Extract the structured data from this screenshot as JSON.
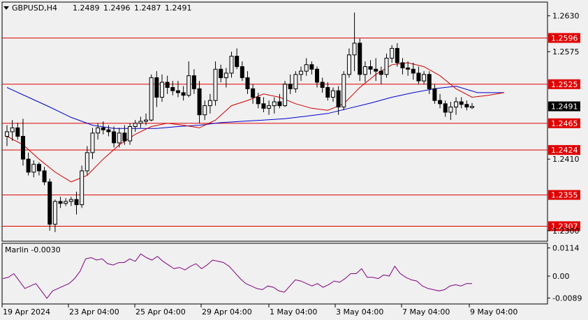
{
  "chart_data": [
    {
      "type": "candlestick",
      "header": {
        "symbol_tf": "GBPUSD,H4",
        "ohlc": [
          "1.2489",
          "1.2496",
          "1.2487",
          "1.2491"
        ]
      },
      "ylim": [
        1.2285,
        1.265
      ],
      "y_ticks": [
        "1.2630",
        "1.2575",
        "1.2410",
        "1.2300"
      ],
      "current_price": {
        "value": 1.2491,
        "label": "1.2491"
      },
      "levels": [
        {
          "value": 1.2596,
          "label": "1.2596"
        },
        {
          "value": 1.2525,
          "label": "1.2525"
        },
        {
          "value": 1.2465,
          "label": "1.2465"
        },
        {
          "value": 1.2424,
          "label": "1.2424"
        },
        {
          "value": 1.2355,
          "label": "1.2355"
        },
        {
          "value": 1.2307,
          "label": "1.2307"
        }
      ],
      "x_labels": [
        "19 Apr 2024",
        "23 Apr 04:00",
        "25 Apr 04:00",
        "29 Apr 04:00",
        "1 May 04:00",
        "3 May 04:00",
        "7 May 04:00",
        "9 May 04:00"
      ],
      "candles": [
        [
          1.2445,
          1.2462,
          1.243,
          1.2452
        ],
        [
          1.2452,
          1.247,
          1.2438,
          1.2458
        ],
        [
          1.2458,
          1.2466,
          1.244,
          1.2445
        ],
        [
          1.2445,
          1.2472,
          1.24,
          1.241
        ],
        [
          1.241,
          1.242,
          1.2385,
          1.239
        ],
        [
          1.239,
          1.2408,
          1.2382,
          1.2402
        ],
        [
          1.2402,
          1.2405,
          1.2385,
          1.2392
        ],
        [
          1.2392,
          1.2398,
          1.237,
          1.2375
        ],
        [
          1.2375,
          1.238,
          1.23,
          1.231
        ],
        [
          1.231,
          1.2348,
          1.2298,
          1.2345
        ],
        [
          1.2345,
          1.2352,
          1.2335,
          1.2342
        ],
        [
          1.2342,
          1.235,
          1.2338,
          1.2345
        ],
        [
          1.2345,
          1.2352,
          1.2338,
          1.2348
        ],
        [
          1.2348,
          1.236,
          1.2325,
          1.234
        ],
        [
          1.234,
          1.24,
          1.2335,
          1.2392
        ],
        [
          1.2392,
          1.243,
          1.2385,
          1.242
        ],
        [
          1.242,
          1.2458,
          1.241,
          1.245
        ],
        [
          1.245,
          1.2465,
          1.244,
          1.2458
        ],
        [
          1.2458,
          1.2468,
          1.2448,
          1.2455
        ],
        [
          1.2455,
          1.2462,
          1.2445,
          1.2452
        ],
        [
          1.2452,
          1.246,
          1.2428,
          1.2435
        ],
        [
          1.2435,
          1.2458,
          1.2428,
          1.245
        ],
        [
          1.245,
          1.2462,
          1.2432,
          1.2438
        ],
        [
          1.2438,
          1.2465,
          1.2432,
          1.246
        ],
        [
          1.246,
          1.247,
          1.2452,
          1.2465
        ],
        [
          1.2465,
          1.2475,
          1.2458,
          1.2468
        ],
        [
          1.2468,
          1.248,
          1.2462,
          1.247
        ],
        [
          1.247,
          1.254,
          1.2468,
          1.2535
        ],
        [
          1.2535,
          1.2545,
          1.249,
          1.2505
        ],
        [
          1.2505,
          1.254,
          1.2498,
          1.2528
        ],
        [
          1.2528,
          1.2538,
          1.251,
          1.252
        ],
        [
          1.252,
          1.253,
          1.2508,
          1.2515
        ],
        [
          1.2515,
          1.253,
          1.2505,
          1.2512
        ],
        [
          1.2512,
          1.2522,
          1.25,
          1.2508
        ],
        [
          1.2508,
          1.256,
          1.2505,
          1.2538
        ],
        [
          1.2538,
          1.2548,
          1.251,
          1.2518
        ],
        [
          1.2518,
          1.253,
          1.2465,
          1.2478
        ],
        [
          1.2478,
          1.25,
          1.247,
          1.2492
        ],
        [
          1.2492,
          1.251,
          1.248,
          1.25
        ],
        [
          1.25,
          1.256,
          1.2492,
          1.2548
        ],
        [
          1.2548,
          1.2555,
          1.2528,
          1.2535
        ],
        [
          1.2535,
          1.255,
          1.252,
          1.2542
        ],
        [
          1.2542,
          1.2575,
          1.2535,
          1.2568
        ],
        [
          1.2568,
          1.258,
          1.2548,
          1.2552
        ],
        [
          1.2552,
          1.256,
          1.253,
          1.2535
        ],
        [
          1.2535,
          1.2545,
          1.251,
          1.2518
        ],
        [
          1.2518,
          1.2525,
          1.2495,
          1.2505
        ],
        [
          1.2505,
          1.2512,
          1.2488,
          1.2495
        ],
        [
          1.2495,
          1.2505,
          1.2482,
          1.2488
        ],
        [
          1.2488,
          1.25,
          1.2478,
          1.2492
        ],
        [
          1.2492,
          1.2505,
          1.248,
          1.2498
        ],
        [
          1.2498,
          1.251,
          1.2488,
          1.2492
        ],
        [
          1.2492,
          1.253,
          1.249,
          1.2525
        ],
        [
          1.2525,
          1.254,
          1.251,
          1.2518
        ],
        [
          1.2518,
          1.2545,
          1.2512,
          1.254
        ],
        [
          1.254,
          1.2552,
          1.253,
          1.2545
        ],
        [
          1.2545,
          1.2565,
          1.2538,
          1.2555
        ],
        [
          1.2555,
          1.256,
          1.254,
          1.2548
        ],
        [
          1.2548,
          1.2552,
          1.252,
          1.2528
        ],
        [
          1.2528,
          1.2535,
          1.2512,
          1.252
        ],
        [
          1.252,
          1.2528,
          1.25,
          1.2505
        ],
        [
          1.2505,
          1.252,
          1.2498,
          1.2515
        ],
        [
          1.2515,
          1.2522,
          1.2478,
          1.249
        ],
        [
          1.249,
          1.2545,
          1.2485,
          1.254
        ],
        [
          1.254,
          1.258,
          1.2535,
          1.257
        ],
        [
          1.257,
          1.2635,
          1.2545,
          1.2588
        ],
        [
          1.2588,
          1.2595,
          1.253,
          1.254
        ],
        [
          1.254,
          1.256,
          1.2528,
          1.2552
        ],
        [
          1.2552,
          1.2562,
          1.254,
          1.2548
        ],
        [
          1.2548,
          1.2565,
          1.253,
          1.2545
        ],
        [
          1.2545,
          1.2552,
          1.2525,
          1.254
        ],
        [
          1.254,
          1.2572,
          1.2535,
          1.2565
        ],
        [
          1.2565,
          1.2585,
          1.2558,
          1.258
        ],
        [
          1.258,
          1.2588,
          1.2552,
          1.2558
        ],
        [
          1.2558,
          1.2565,
          1.254,
          1.255
        ],
        [
          1.255,
          1.256,
          1.2538,
          1.2548
        ],
        [
          1.2548,
          1.2558,
          1.2532,
          1.2542
        ],
        [
          1.2542,
          1.2552,
          1.2525,
          1.253
        ],
        [
          1.253,
          1.2545,
          1.2525,
          1.254
        ],
        [
          1.254,
          1.2545,
          1.251,
          1.2518
        ],
        [
          1.2518,
          1.2525,
          1.2495,
          1.25
        ],
        [
          1.25,
          1.251,
          1.2488,
          1.2495
        ],
        [
          1.2495,
          1.25,
          1.2475,
          1.2482
        ],
        [
          1.2482,
          1.2498,
          1.247,
          1.249
        ],
        [
          1.249,
          1.2505,
          1.2478,
          1.2498
        ],
        [
          1.2498,
          1.2505,
          1.2488,
          1.2494
        ],
        [
          1.2494,
          1.25,
          1.2485,
          1.249
        ],
        [
          1.2489,
          1.2496,
          1.2487,
          1.2491
        ]
      ],
      "ma_fast": [
        [
          0,
          1.2445
        ],
        [
          3,
          1.2432
        ],
        [
          6,
          1.241
        ],
        [
          9,
          1.239
        ],
        [
          12,
          1.2375
        ],
        [
          15,
          1.2385
        ],
        [
          18,
          1.241
        ],
        [
          21,
          1.2432
        ],
        [
          24,
          1.2448
        ],
        [
          27,
          1.246
        ],
        [
          30,
          1.2465
        ],
        [
          33,
          1.2462
        ],
        [
          36,
          1.2458
        ],
        [
          39,
          1.247
        ],
        [
          42,
          1.2492
        ],
        [
          45,
          1.25
        ],
        [
          48,
          1.251
        ],
        [
          51,
          1.2505
        ],
        [
          54,
          1.2495
        ],
        [
          57,
          1.2488
        ],
        [
          60,
          1.2485
        ],
        [
          63,
          1.2495
        ],
        [
          66,
          1.252
        ],
        [
          69,
          1.254
        ],
        [
          72,
          1.2555
        ],
        [
          75,
          1.2558
        ],
        [
          78,
          1.2552
        ],
        [
          81,
          1.2538
        ],
        [
          84,
          1.2518
        ],
        [
          87,
          1.2505
        ],
        [
          90,
          1.2508
        ],
        [
          93,
          1.2512
        ]
      ],
      "ma_slow": [
        [
          0,
          1.252
        ],
        [
          4,
          1.2505
        ],
        [
          8,
          1.249
        ],
        [
          12,
          1.2474
        ],
        [
          16,
          1.2462
        ],
        [
          20,
          1.2457
        ],
        [
          24,
          1.2457
        ],
        [
          28,
          1.2457
        ],
        [
          32,
          1.246
        ],
        [
          36,
          1.2462
        ],
        [
          40,
          1.2466
        ],
        [
          44,
          1.2468
        ],
        [
          48,
          1.247
        ],
        [
          52,
          1.2472
        ],
        [
          56,
          1.2476
        ],
        [
          60,
          1.248
        ],
        [
          64,
          1.2488
        ],
        [
          68,
          1.2496
        ],
        [
          72,
          1.2505
        ],
        [
          76,
          1.2512
        ],
        [
          80,
          1.2518
        ],
        [
          84,
          1.2522
        ],
        [
          88,
          1.2512
        ],
        [
          93,
          1.2512
        ]
      ]
    },
    {
      "type": "line",
      "label": "Marlin -0.0030",
      "ylim": [
        -0.011,
        0.013
      ],
      "y_ticks": [
        "0.0114",
        "0.00",
        "-0.0089"
      ],
      "series": [
        {
          "values": [
            -0.001,
            -0.0005,
            0.001,
            -0.002,
            -0.005,
            -0.004,
            -0.003,
            -0.006,
            -0.009,
            -0.006,
            -0.005,
            -0.004,
            -0.003,
            -0.001,
            0.002,
            0.007,
            0.0075,
            0.0065,
            0.007,
            0.005,
            0.0045,
            0.0055,
            0.0055,
            0.007,
            0.006,
            0.009,
            0.0075,
            0.0065,
            0.008,
            0.006,
            0.0045,
            0.003,
            0.0035,
            0.0025,
            0.004,
            0.005,
            0.003,
            0.0045,
            0.0065,
            0.006,
            0.0055,
            0.004,
            0.0015,
            -0.001,
            -0.003,
            -0.004,
            -0.005,
            -0.0055,
            -0.004,
            -0.0045,
            -0.006,
            -0.0065,
            -0.004,
            -0.0015,
            -0.002,
            -0.003,
            -0.004,
            -0.003,
            -0.0045,
            -0.0035,
            -0.002,
            -0.0025,
            -0.001,
            0.001,
            0.001,
            0.003,
            -0.0005,
            -0.0005,
            -0.001,
            0.0005,
            0.0,
            0.004,
            0.001,
            -0.0005,
            -0.0015,
            -0.002,
            -0.004,
            -0.005,
            -0.0055,
            -0.006,
            -0.0055,
            -0.004,
            -0.0035,
            -0.004,
            -0.003,
            -0.003
          ]
        }
      ]
    }
  ]
}
